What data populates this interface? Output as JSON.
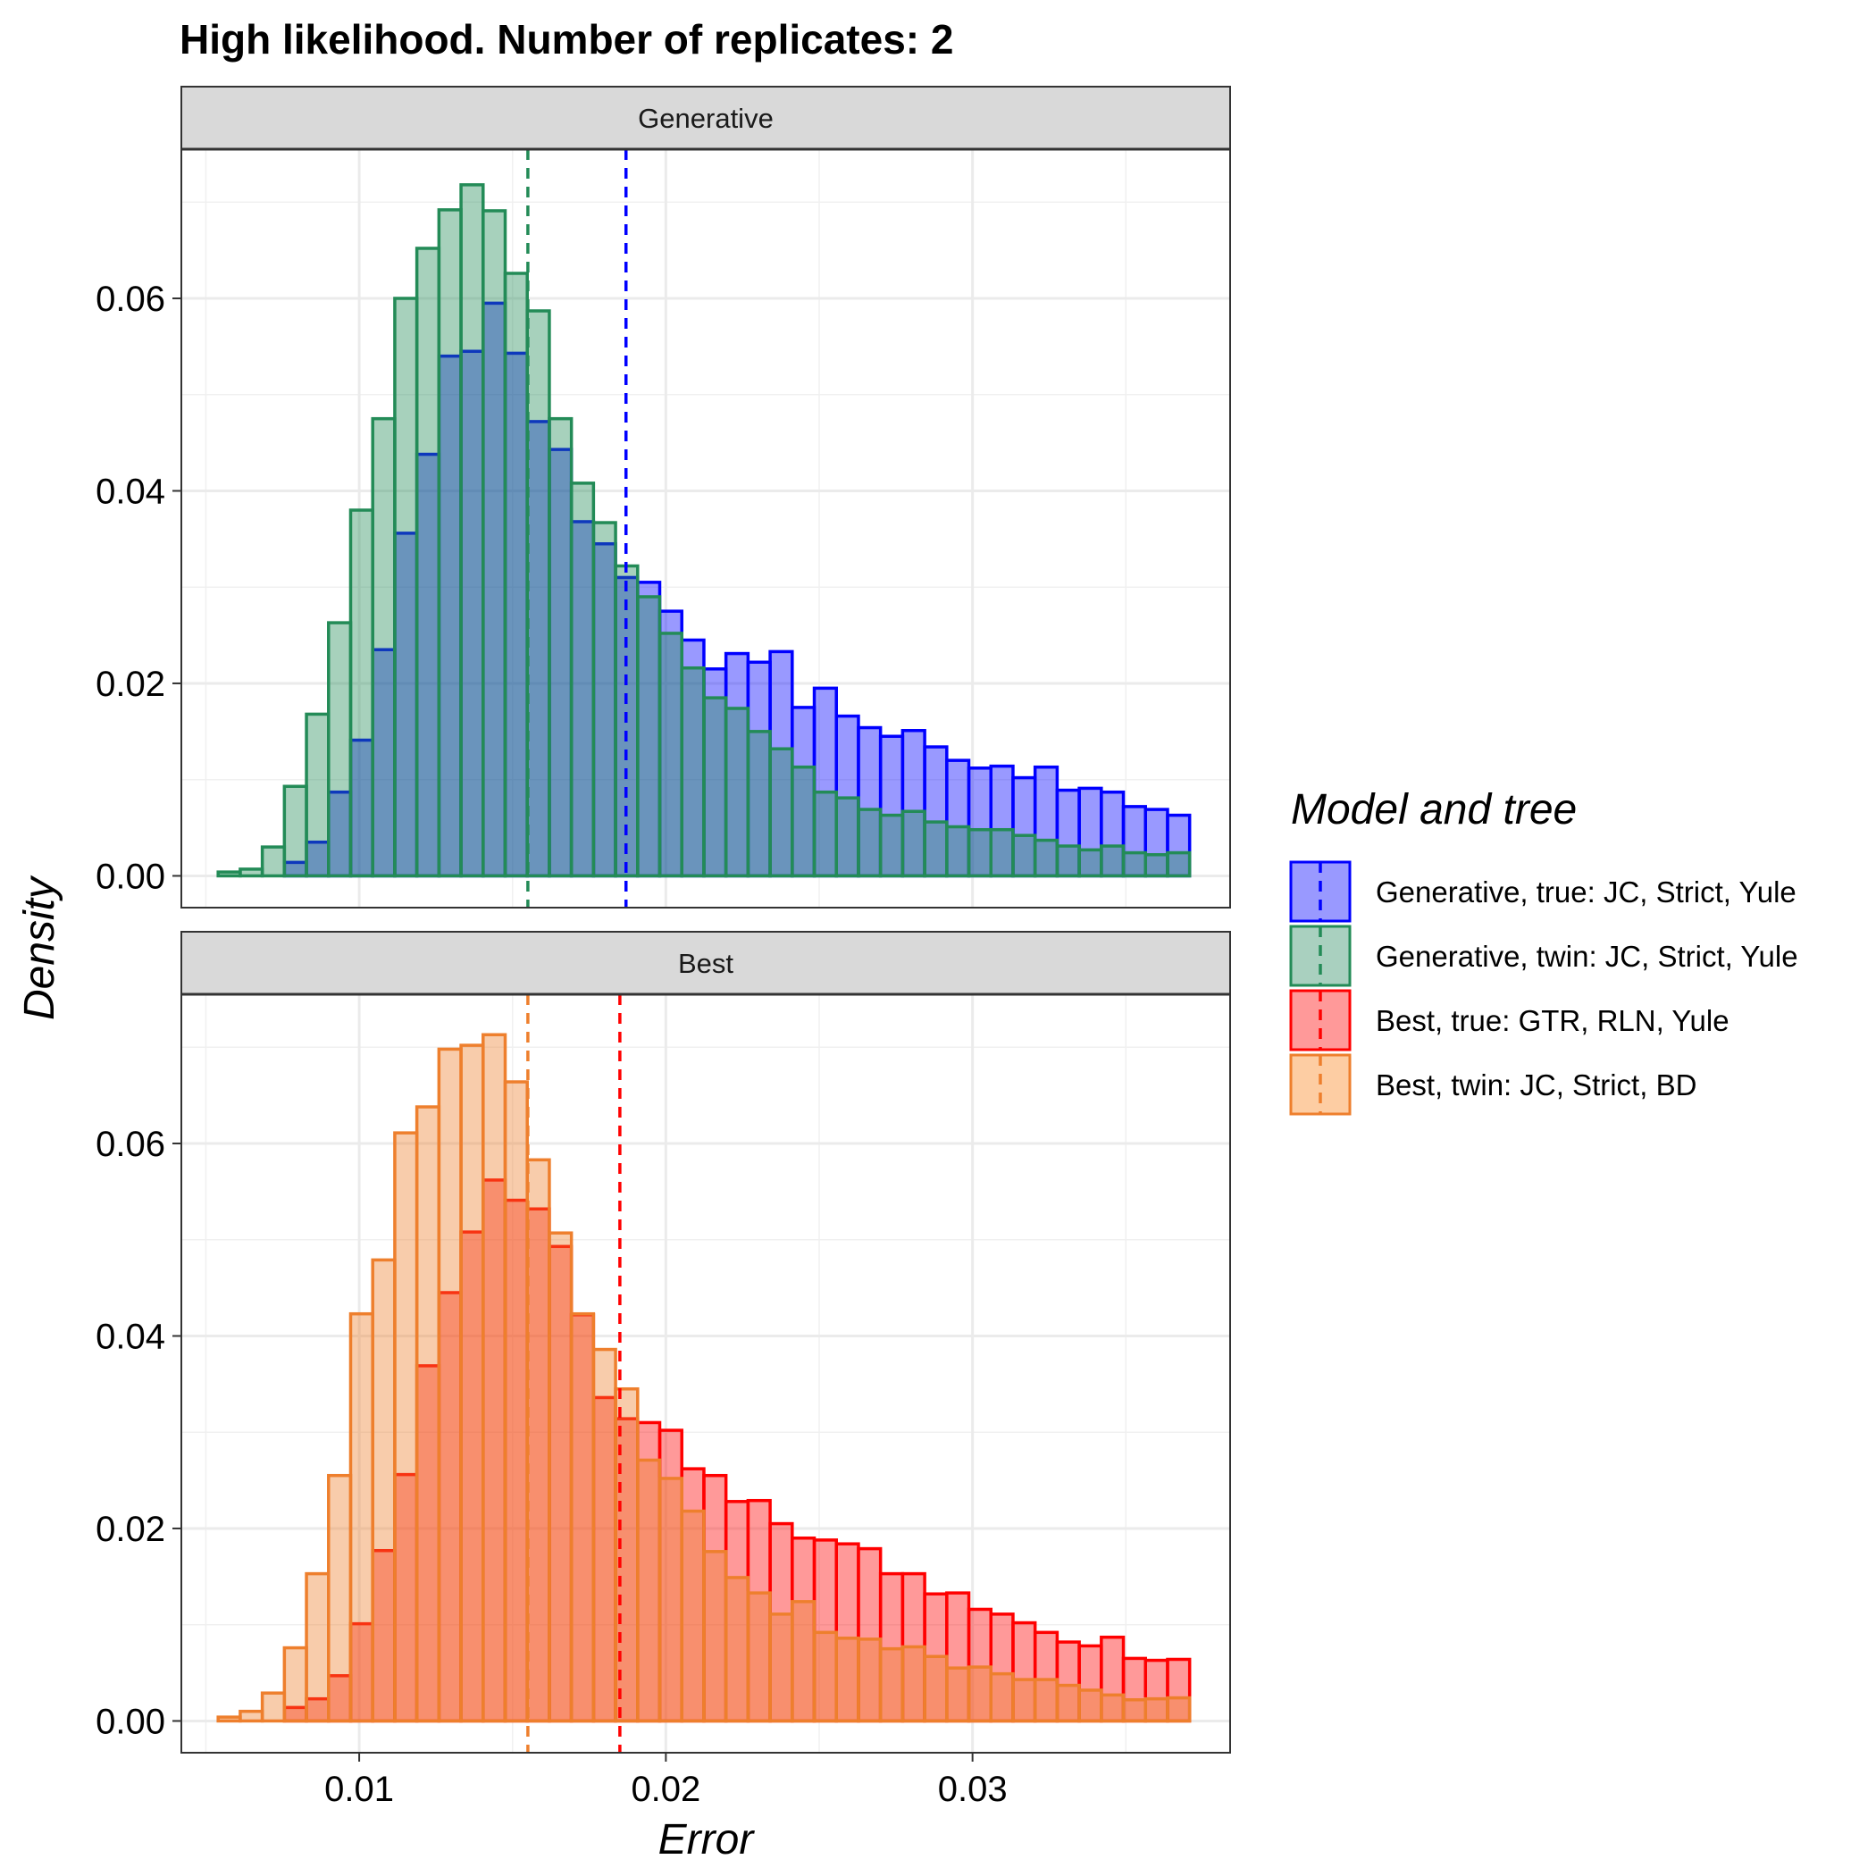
{
  "chart_data": {
    "type": "histogram",
    "title": "High likelihood. Number of replicates:  2",
    "xlabel": "Error",
    "ylabel": "Density",
    "xlim": [
      0.0042,
      0.0384
    ],
    "ylim": [
      -0.0033,
      0.0755
    ],
    "x_ticks": [
      0.01,
      0.02,
      0.03
    ],
    "x_tick_labels": [
      "0.01",
      "0.02",
      "0.03"
    ],
    "y_ticks": [
      0.0,
      0.02,
      0.04,
      0.06
    ],
    "y_tick_labels": [
      "0.00",
      "0.02",
      "0.04",
      "0.06"
    ],
    "grid": true,
    "bin_start": 0.0054,
    "bin_width": 0.00072,
    "legend": {
      "title": "Model and tree",
      "placement": "right",
      "entries": [
        {
          "label": "Generative, true: JC, Strict, Yule",
          "fill": "#9999ff",
          "stroke": "#0000ff"
        },
        {
          "label": "Generative, twin: JC, Strict, Yule",
          "fill": "#a9d0bf",
          "stroke": "#238b57"
        },
        {
          "label": "Best, true: GTR, RLN, Yule",
          "fill": "#ff9999",
          "stroke": "#ff0000"
        },
        {
          "label": "Best, twin: JC, Strict, BD",
          "fill": "#fdcda3",
          "stroke": "#ee7f2d"
        }
      ]
    },
    "panels": [
      {
        "strip": "Generative",
        "series": [
          {
            "name": "Generative, true: JC, Strict, Yule",
            "fill": "#0000ff",
            "fill_opacity": 0.4,
            "stroke": "#0000ff",
            "mean": 0.0187,
            "values": [
              0.0,
              0.0,
              0.0,
              0.0014,
              0.0035,
              0.0087,
              0.0141,
              0.0235,
              0.0356,
              0.0438,
              0.054,
              0.0545,
              0.0595,
              0.0543,
              0.0472,
              0.0443,
              0.0368,
              0.0345,
              0.031,
              0.0305,
              0.0275,
              0.0245,
              0.0215,
              0.0231,
              0.0222,
              0.0233,
              0.0175,
              0.0195,
              0.0166,
              0.0154,
              0.0145,
              0.0151,
              0.0134,
              0.012,
              0.0112,
              0.0114,
              0.0102,
              0.0113,
              0.0089,
              0.0091,
              0.0087,
              0.0072,
              0.0069,
              0.0063
            ]
          },
          {
            "name": "Generative, twin: JC, Strict, Yule",
            "fill": "#238b57",
            "fill_opacity": 0.4,
            "stroke": "#238b57",
            "mean": 0.0155,
            "values": [
              0.0004,
              0.0007,
              0.003,
              0.0093,
              0.0168,
              0.0263,
              0.038,
              0.0475,
              0.06,
              0.0652,
              0.0692,
              0.0718,
              0.0691,
              0.0626,
              0.0587,
              0.0475,
              0.0408,
              0.0367,
              0.0322,
              0.029,
              0.0252,
              0.0216,
              0.0185,
              0.0174,
              0.015,
              0.0132,
              0.0113,
              0.0087,
              0.0081,
              0.0069,
              0.0063,
              0.0067,
              0.0056,
              0.0051,
              0.0048,
              0.0048,
              0.0042,
              0.0037,
              0.0031,
              0.0027,
              0.0031,
              0.0024,
              0.0022,
              0.0024
            ]
          }
        ]
      },
      {
        "strip": "Best",
        "series": [
          {
            "name": "Best, true: GTR, RLN, Yule",
            "fill": "#ff0000",
            "fill_opacity": 0.4,
            "stroke": "#ff0000",
            "mean": 0.0185,
            "values": [
              0.0,
              0.0,
              0.0,
              0.0014,
              0.0023,
              0.0047,
              0.0101,
              0.0177,
              0.0256,
              0.0369,
              0.0445,
              0.0508,
              0.0562,
              0.0541,
              0.0532,
              0.0493,
              0.0422,
              0.0336,
              0.0314,
              0.031,
              0.0302,
              0.0262,
              0.0255,
              0.0228,
              0.0229,
              0.0205,
              0.019,
              0.0188,
              0.0184,
              0.0179,
              0.0153,
              0.0153,
              0.0132,
              0.0133,
              0.0116,
              0.0111,
              0.0102,
              0.0092,
              0.0082,
              0.0078,
              0.0087,
              0.0065,
              0.0063,
              0.0064
            ]
          },
          {
            "name": "Best, twin: JC, Strict, BD",
            "fill": "#ee7f2d",
            "fill_opacity": 0.4,
            "stroke": "#ee7f2d",
            "mean": 0.0155,
            "values": [
              0.0004,
              0.001,
              0.0029,
              0.0076,
              0.0153,
              0.0255,
              0.0423,
              0.0479,
              0.0611,
              0.0638,
              0.0698,
              0.0702,
              0.0713,
              0.0664,
              0.0583,
              0.0507,
              0.0423,
              0.0386,
              0.0345,
              0.0271,
              0.0252,
              0.0218,
              0.0176,
              0.0149,
              0.0133,
              0.0111,
              0.0124,
              0.0092,
              0.0086,
              0.0085,
              0.0075,
              0.0077,
              0.0067,
              0.0055,
              0.0056,
              0.0049,
              0.0043,
              0.0043,
              0.0037,
              0.0032,
              0.0027,
              0.0022,
              0.0023,
              0.0024
            ]
          }
        ]
      }
    ]
  }
}
